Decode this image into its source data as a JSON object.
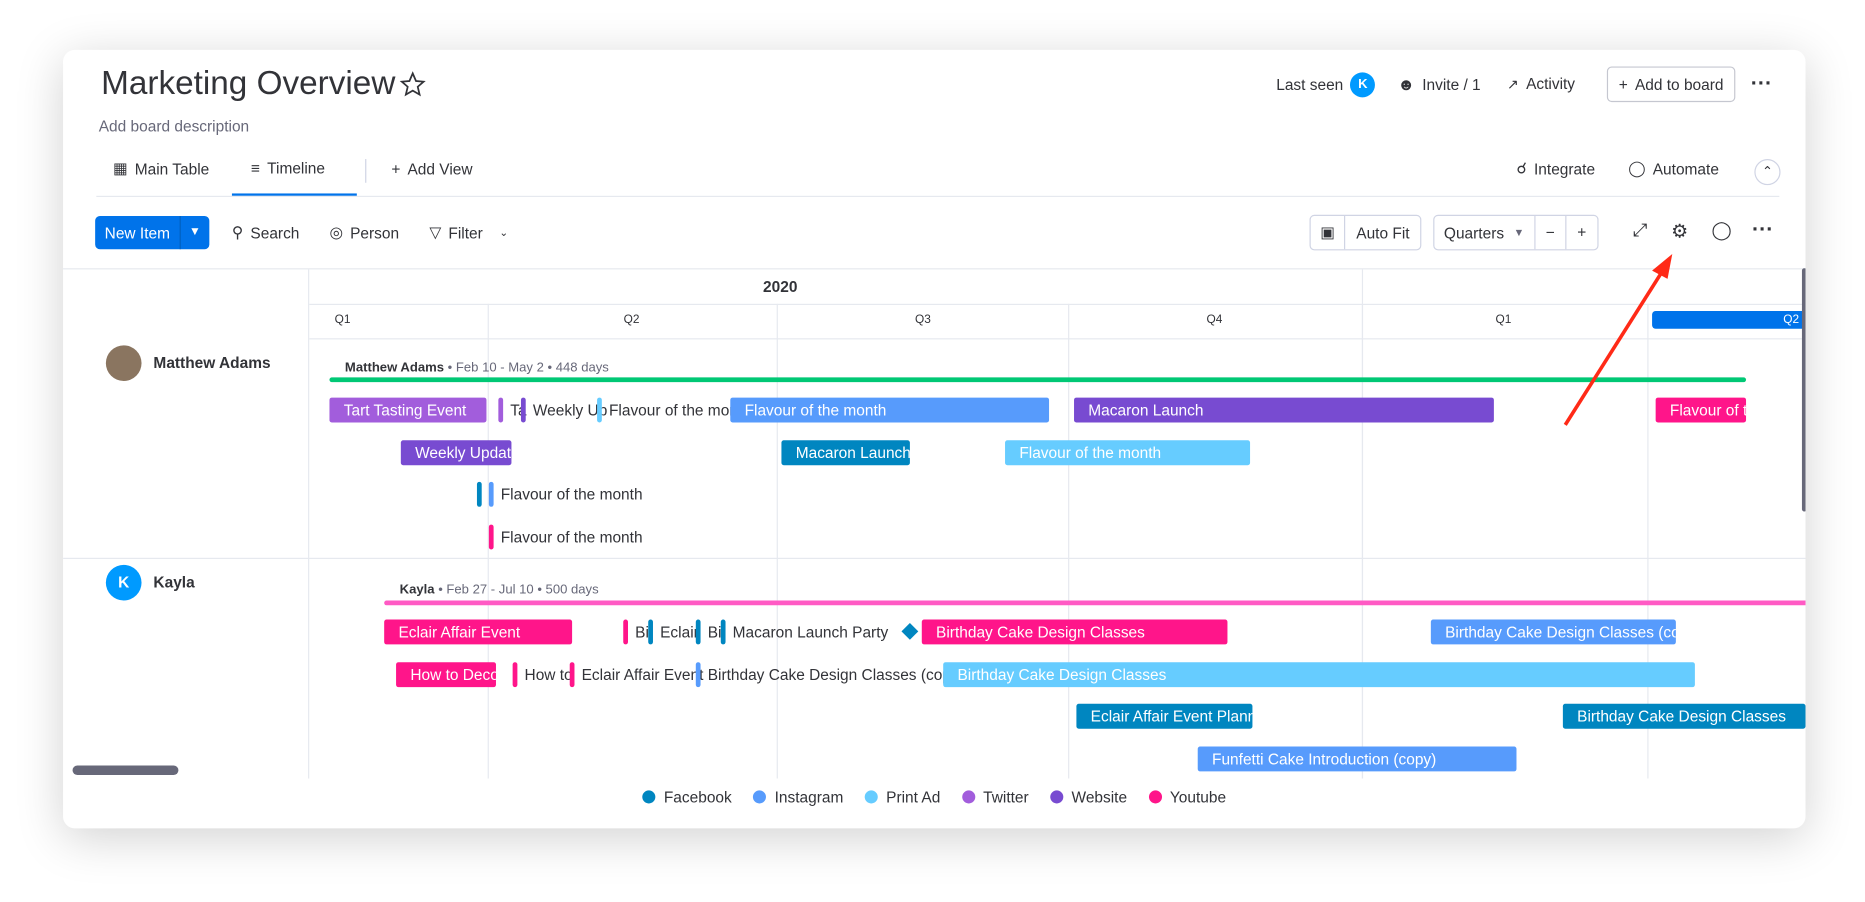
{
  "header": {
    "title": "Marketing Overview",
    "description": "Add board description",
    "last_seen": "Last seen",
    "avatar": "K",
    "invite": "Invite / 1",
    "activity": "Activity",
    "add_to_board": "Add to board"
  },
  "tabs": {
    "main_table": "Main Table",
    "timeline": "Timeline",
    "add_view": "Add View",
    "integrate": "Integrate",
    "automate": "Automate"
  },
  "toolbar": {
    "new_item": "New Item",
    "search": "Search",
    "person": "Person",
    "filter": "Filter",
    "auto_fit": "Auto Fit",
    "zoom": "Quarters"
  },
  "timeline": {
    "year": "2020",
    "quarters": [
      "Q1",
      "Q2",
      "Q3",
      "Q4",
      "Q1",
      "Q2"
    ],
    "groups": [
      {
        "name": "Matthew Adams",
        "summary_name": "Matthew Adams",
        "summary_dates": "• Feb 10 - May 2 • 448 days",
        "color": "#00c875",
        "items": [
          {
            "label": "Tart Tasting Event",
            "color": "#a25ddc"
          },
          {
            "label": "Ta",
            "color": "#a25ddc"
          },
          {
            "label": "Weekly Up",
            "color": "#784bd1"
          },
          {
            "label": "Flavour of the mon",
            "color": "#66ccff"
          },
          {
            "label": "Flavour of the month",
            "color": "#579bfc"
          },
          {
            "label": "Macaron Launch",
            "color": "#784bd1"
          },
          {
            "label": "Flavour of t",
            "color": "#ff158a"
          },
          {
            "label": "Weekly Update",
            "color": "#784bd1"
          },
          {
            "label": "Macaron Launch",
            "color": "#0086c0"
          },
          {
            "label": "Flavour of the month",
            "color": "#66ccff"
          },
          {
            "color": "#0086c0"
          },
          {
            "label": "Flavour of the month",
            "color": "#579bfc"
          },
          {
            "label": "Flavour of the month",
            "color": "#ff158a"
          }
        ]
      },
      {
        "name": "Kayla",
        "avatar": "K",
        "summary_name": "Kayla",
        "summary_dates": "• Feb 27 - Jul 10 • 500 days",
        "color": "#ff5ac4",
        "items": [
          {
            "label": "Eclair Affair Event",
            "color": "#ff158a"
          },
          {
            "label": "Bi",
            "color": "#ff158a"
          },
          {
            "label": "Eclair",
            "color": "#0086c0"
          },
          {
            "label": "Bi",
            "color": "#0086c0"
          },
          {
            "label": "Macaron Launch Party",
            "color": "#0086c0"
          },
          {
            "label": "Birthday Cake Design Classes",
            "color": "#ff158a"
          },
          {
            "label": "Birthday Cake Design Classes (cop",
            "color": "#579bfc"
          },
          {
            "label": "How to Deco",
            "color": "#ff158a"
          },
          {
            "label": "How to",
            "color": "#ff158a"
          },
          {
            "label": "Eclair Affair Event",
            "color": "#ff158a"
          },
          {
            "label": "Birthday Cake Design Classes (copy)",
            "color": "#579bfc"
          },
          {
            "label": "Birthday Cake Design Classes",
            "color": "#66ccff"
          },
          {
            "label": "Eclair Affair Event Plann",
            "color": "#0086c0"
          },
          {
            "label": "Birthday Cake Design Classes",
            "color": "#0086c0"
          },
          {
            "label": "Funfetti Cake Introduction (copy)",
            "color": "#579bfc"
          }
        ]
      }
    ]
  },
  "legend": [
    {
      "name": "Facebook",
      "color": "#0086c0"
    },
    {
      "name": "Instagram",
      "color": "#579bfc"
    },
    {
      "name": "Print Ad",
      "color": "#66ccff"
    },
    {
      "name": "Twitter",
      "color": "#a25ddc"
    },
    {
      "name": "Website",
      "color": "#784bd1"
    },
    {
      "name": "Youtube",
      "color": "#ff158a"
    }
  ]
}
